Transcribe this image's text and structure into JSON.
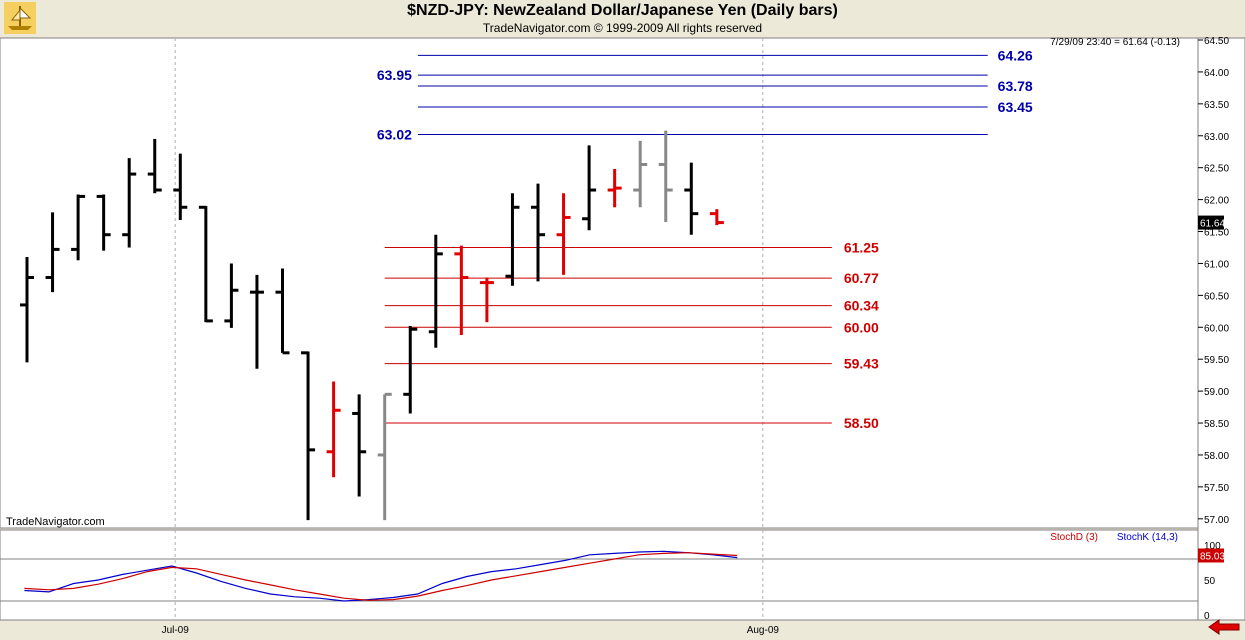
{
  "header": {
    "title": "$NZD-JPY:  NewZealand Dollar/Japanese Yen  (Daily bars)",
    "copyright": "TradeNavigator.com © 1999-2009 All rights reserved",
    "last_quote": "7/29/09 23:40 = 61.64 (-0.13)",
    "watermark": "TradeNavigator.com"
  },
  "colors": {
    "up_bar": "#000000",
    "neutral_bar": "#888888",
    "red_bar": "#e00000",
    "fib_level": "#cc0000",
    "target_level": "#0000aa",
    "stoch_d": "#cc0000",
    "stoch_k": "#0000cc",
    "price_tag": "#000000",
    "stoch_tag": "#cc0000"
  },
  "chart_data": {
    "type": "ohlc",
    "y_axis_ticks": [
      "64.50",
      "64.00",
      "63.50",
      "63.00",
      "62.50",
      "62.00",
      "61.50",
      "61.00",
      "60.50",
      "60.00",
      "59.50",
      "59.00",
      "58.50",
      "58.00",
      "57.50",
      "57.00"
    ],
    "ylim": [
      56.95,
      64.5
    ],
    "x_labels": [
      {
        "label": "Jul-09",
        "bar": 5.8
      },
      {
        "label": "Aug-09",
        "bar": 28.8
      }
    ],
    "bars": [
      {
        "o": 60.35,
        "h": 61.1,
        "l": 59.45,
        "c": 60.78,
        "color": "black"
      },
      {
        "o": 60.78,
        "h": 61.8,
        "l": 60.55,
        "c": 61.22,
        "color": "black"
      },
      {
        "o": 61.22,
        "h": 62.08,
        "l": 61.05,
        "c": 62.05,
        "color": "black"
      },
      {
        "o": 62.05,
        "h": 62.08,
        "l": 61.2,
        "c": 61.45,
        "color": "black"
      },
      {
        "o": 61.45,
        "h": 62.65,
        "l": 61.25,
        "c": 62.4,
        "color": "black"
      },
      {
        "o": 62.4,
        "h": 62.95,
        "l": 62.1,
        "c": 62.15,
        "color": "black"
      },
      {
        "o": 62.15,
        "h": 62.72,
        "l": 61.68,
        "c": 61.88,
        "color": "black"
      },
      {
        "o": 61.88,
        "h": 61.9,
        "l": 60.08,
        "c": 60.1,
        "color": "black"
      },
      {
        "o": 60.1,
        "h": 61.0,
        "l": 59.99,
        "c": 60.58,
        "color": "black"
      },
      {
        "o": 60.55,
        "h": 60.82,
        "l": 59.35,
        "c": 60.55,
        "color": "black"
      },
      {
        "o": 60.55,
        "h": 60.92,
        "l": 59.6,
        "c": 59.6,
        "color": "black"
      },
      {
        "o": 59.6,
        "h": 59.62,
        "l": 56.98,
        "c": 58.08,
        "color": "black"
      },
      {
        "o": 58.05,
        "h": 59.15,
        "l": 57.65,
        "c": 58.7,
        "color": "red"
      },
      {
        "o": 58.65,
        "h": 58.95,
        "l": 57.35,
        "c": 58.05,
        "color": "black"
      },
      {
        "o": 58.0,
        "h": 58.95,
        "l": 56.98,
        "c": 58.95,
        "color": "gray"
      },
      {
        "o": 58.95,
        "h": 60.02,
        "l": 58.65,
        "c": 59.97,
        "color": "black"
      },
      {
        "o": 59.93,
        "h": 61.45,
        "l": 59.68,
        "c": 61.15,
        "color": "black"
      },
      {
        "o": 61.15,
        "h": 61.28,
        "l": 59.88,
        "c": 60.78,
        "color": "red"
      },
      {
        "o": 60.7,
        "h": 60.78,
        "l": 60.08,
        "c": 60.7,
        "color": "red"
      },
      {
        "o": 60.8,
        "h": 62.1,
        "l": 60.65,
        "c": 61.88,
        "color": "black"
      },
      {
        "o": 61.88,
        "h": 62.25,
        "l": 60.72,
        "c": 61.45,
        "color": "black"
      },
      {
        "o": 61.45,
        "h": 62.1,
        "l": 60.82,
        "c": 61.72,
        "color": "red"
      },
      {
        "o": 61.7,
        "h": 62.85,
        "l": 61.52,
        "c": 62.15,
        "color": "black"
      },
      {
        "o": 62.15,
        "h": 62.48,
        "l": 61.88,
        "c": 62.18,
        "color": "red"
      },
      {
        "o": 62.15,
        "h": 62.92,
        "l": 61.88,
        "c": 62.55,
        "color": "gray"
      },
      {
        "o": 62.55,
        "h": 63.08,
        "l": 61.65,
        "c": 62.15,
        "color": "gray"
      },
      {
        "o": 62.15,
        "h": 62.58,
        "l": 61.45,
        "c": 61.78,
        "color": "black"
      },
      {
        "o": 61.78,
        "h": 61.85,
        "l": 61.6,
        "c": 61.64,
        "color": "red"
      }
    ],
    "fib_levels": [
      {
        "label": "61.25",
        "value": 61.25,
        "from_bar": 14,
        "to_bar": 31.5
      },
      {
        "label": "60.77",
        "value": 60.77,
        "from_bar": 14,
        "to_bar": 31.5
      },
      {
        "label": "60.34",
        "value": 60.34,
        "from_bar": 14,
        "to_bar": 31.5
      },
      {
        "label": "60.00",
        "value": 60.0,
        "from_bar": 14,
        "to_bar": 31.5
      },
      {
        "label": "59.43",
        "value": 59.43,
        "from_bar": 14,
        "to_bar": 31.5
      },
      {
        "label": "58.50",
        "value": 58.5,
        "from_bar": 14,
        "to_bar": 31.5
      }
    ],
    "target_levels": [
      {
        "label": "64.26",
        "value": 64.26,
        "label_side": "right"
      },
      {
        "label": "63.95",
        "value": 63.95,
        "label_side": "left"
      },
      {
        "label": "63.78",
        "value": 63.78,
        "label_side": "right"
      },
      {
        "label": "63.45",
        "value": 63.45,
        "label_side": "right"
      },
      {
        "label": "63.02",
        "value": 63.02,
        "label_side": "left"
      }
    ],
    "price_tag": {
      "label": "61.64",
      "value": 61.64
    },
    "stochastic": {
      "legend": [
        "StochD (3)",
        "StochK (14,3)"
      ],
      "y_ticks": [
        "100",
        "50",
        "0"
      ],
      "ylim": [
        0,
        100
      ],
      "guide_levels": [
        80,
        20
      ],
      "tag": "85.03",
      "stoch_d": [
        38,
        36,
        38,
        44,
        52,
        62,
        68,
        66,
        58,
        50,
        43,
        36,
        30,
        24,
        21,
        22,
        27,
        35,
        42,
        50,
        56,
        62,
        68,
        74,
        80,
        86,
        88,
        89,
        87,
        85
      ],
      "stoch_k": [
        35,
        33,
        45,
        50,
        58,
        64,
        70,
        60,
        48,
        38,
        30,
        26,
        24,
        20,
        22,
        25,
        30,
        45,
        55,
        62,
        66,
        72,
        78,
        86,
        88,
        90,
        91,
        89,
        86,
        82
      ]
    }
  }
}
